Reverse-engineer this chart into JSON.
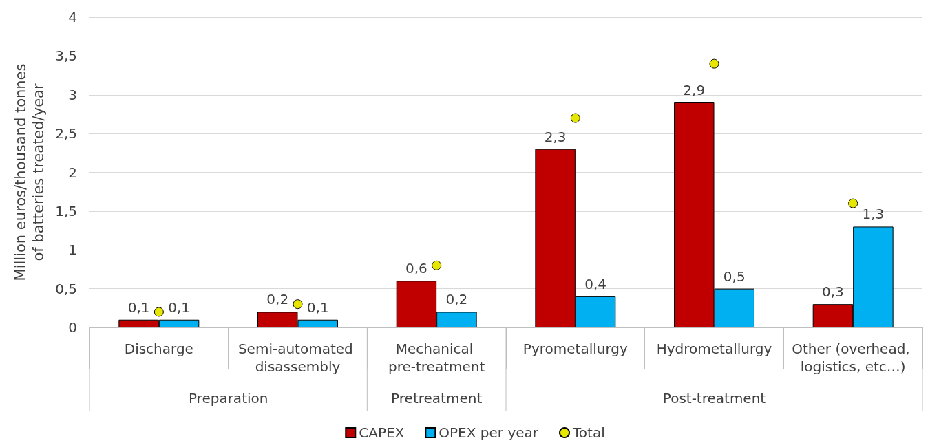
{
  "chart_data": {
    "type": "bar",
    "ylabel": "Million euros/thousand tonnes of batteries treated/year",
    "categories": [
      "Discharge",
      "Semi-automated disassembly",
      "Mechanical pre-treatment",
      "Pyrometallurgy",
      "Hydrometallurgy",
      "Other (overhead, logistics, etc…)"
    ],
    "annotations": [
      "Preparation",
      "Pretreatment",
      "Post-treatment"
    ],
    "series": [
      {
        "name": "CAPEX",
        "color": "#c00000",
        "values": [
          0.1,
          0.2,
          0.6,
          2.3,
          2.9,
          0.3
        ],
        "value_labels": [
          "0,1",
          "0,2",
          "0,6",
          "2,3",
          "2,9",
          "0,3"
        ]
      },
      {
        "name": "OPEX per year",
        "color": "#00b0f0",
        "values": [
          0.1,
          0.1,
          0.2,
          0.4,
          0.5,
          1.3
        ],
        "value_labels": [
          "0,1",
          "0,1",
          "0,2",
          "0,4",
          "0,5",
          "1,3"
        ]
      },
      {
        "name": "Total",
        "type": "scatter",
        "color": "#e6e600",
        "x": [
          "Discharge",
          "Semi-automated disassembly",
          "Mechanical pre-treatment",
          "Pyrometallurgy",
          "Hydrometallurgy",
          "Other (overhead, logistics, etc…)"
        ],
        "values": [
          0.2,
          0.3,
          0.8,
          2.7,
          3.4,
          1.6
        ]
      }
    ],
    "ylim": [
      0,
      4
    ],
    "yticks": [
      0,
      {
        "value": 0.5,
        "label": "0,5"
      },
      1,
      {
        "value": 1.5,
        "label": "1,5"
      },
      2,
      {
        "value": 2.5,
        "label": "2,5"
      },
      3,
      {
        "value": 3.5,
        "label": "3,5"
      },
      4
    ],
    "grid": "y",
    "legend": "bottom",
    "marker": "circle"
  }
}
